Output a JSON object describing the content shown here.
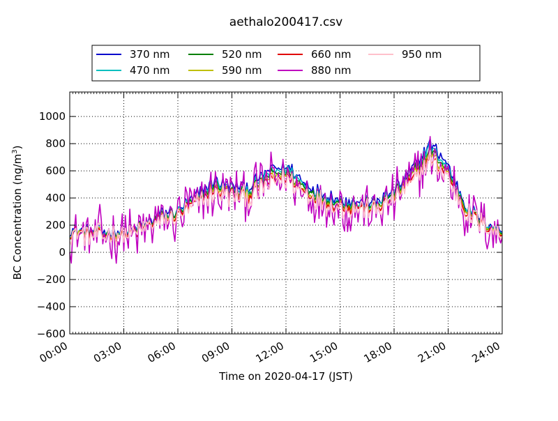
{
  "chart_data": {
    "type": "line",
    "title": "aethalo200417.csv",
    "xlabel": "Time on 2020-04-17 (JST)",
    "ylabel": "BC Concentration (ng/m",
    "ylabel_sup": "3",
    "ylabel_end": ")",
    "xlim": [
      0,
      24
    ],
    "ylim": [
      -600,
      1180
    ],
    "grid": true,
    "legend_position": "top-center",
    "x_ticks": [
      0,
      3,
      6,
      9,
      12,
      15,
      18,
      21,
      24
    ],
    "x_tick_labels": [
      "00:00",
      "03:00",
      "06:00",
      "09:00",
      "12:00",
      "15:00",
      "18:00",
      "21:00",
      "24:00"
    ],
    "y_ticks": [
      -600,
      -400,
      -200,
      0,
      200,
      400,
      600,
      800,
      1000
    ],
    "y_tick_labels": [
      "−600",
      "−400",
      "−200",
      "0",
      "200",
      "400",
      "600",
      "800",
      "1000"
    ],
    "base_profile": {
      "x": [
        0,
        1,
        2,
        3,
        4,
        5,
        6,
        7,
        8,
        9,
        10,
        11,
        12,
        13,
        14,
        15,
        16,
        17,
        18,
        19,
        20,
        21,
        22,
        23,
        24
      ],
      "y": [
        140,
        140,
        130,
        130,
        170,
        240,
        270,
        360,
        460,
        420,
        420,
        520,
        560,
        450,
        380,
        340,
        330,
        320,
        400,
        530,
        700,
        560,
        300,
        200,
        130
      ]
    },
    "series": [
      {
        "name": "370 nm",
        "color": "#0000cc",
        "offset": 60,
        "noise": 50
      },
      {
        "name": "470 nm",
        "color": "#00bfbf",
        "offset": 45,
        "noise": 50
      },
      {
        "name": "520 nm",
        "color": "#007f00",
        "offset": 30,
        "noise": 50
      },
      {
        "name": "590 nm",
        "color": "#bfbf00",
        "offset": 15,
        "noise": 50
      },
      {
        "name": "660 nm",
        "color": "#e00000",
        "offset": 0,
        "noise": 55
      },
      {
        "name": "880 nm",
        "color": "#bf00bf",
        "offset": 0,
        "noise": 190
      },
      {
        "name": "950 nm",
        "color": "#ffc0cb",
        "offset": -10,
        "noise": 80
      }
    ]
  }
}
